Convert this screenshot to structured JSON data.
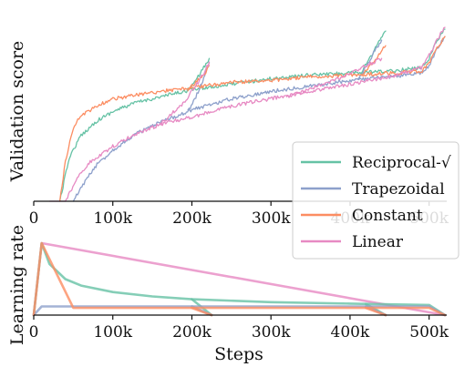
{
  "colors": {
    "reciprocal_sqrt": "#66c2a5",
    "trapezoidal": "#8da0cb",
    "constant": "#fc8d62",
    "linear": "#e78ac3"
  },
  "chart_data": [
    {
      "type": "line",
      "ylabel": "Validation score",
      "xlabel": "",
      "xlim": [
        0,
        520000
      ],
      "ylim": [
        0,
        1
      ],
      "x_ticks": [
        0,
        100000,
        200000,
        300000,
        400000,
        500000
      ],
      "x_tick_labels": [
        "0",
        "100k",
        "200k",
        "300k",
        "400k",
        "500k"
      ],
      "grid": false,
      "legend_position": "right",
      "noisy_lines": true,
      "series": [
        {
          "name": "Reciprocal-√",
          "color": "#66c2a5",
          "x": [
            33000,
            45000,
            60000,
            80000,
            100000,
            130000,
            160000,
            200000,
            250000,
            300000,
            350000,
            400000,
            450000,
            490000,
            500000,
            510000,
            520000
          ],
          "y": [
            0.0,
            0.24,
            0.36,
            0.44,
            0.49,
            0.54,
            0.57,
            0.61,
            0.64,
            0.67,
            0.69,
            0.7,
            0.71,
            0.73,
            0.78,
            0.88,
            0.94
          ]
        },
        {
          "name": "Reciprocal-√",
          "color": "#66c2a5",
          "x": [
            195000,
            205000,
            215000,
            222000
          ],
          "y": [
            0.61,
            0.66,
            0.73,
            0.78
          ]
        },
        {
          "name": "Reciprocal-√",
          "color": "#66c2a5",
          "x": [
            415000,
            425000,
            435000,
            445000
          ],
          "y": [
            0.71,
            0.78,
            0.86,
            0.93
          ]
        },
        {
          "name": "Trapezoidal",
          "color": "#8da0cb",
          "x": [
            50000,
            65000,
            80000,
            100000,
            130000,
            160000,
            200000,
            250000,
            300000,
            350000,
            400000,
            450000,
            490000,
            500000,
            510000,
            520000
          ],
          "y": [
            0.0,
            0.11,
            0.2,
            0.28,
            0.37,
            0.43,
            0.5,
            0.56,
            0.6,
            0.63,
            0.66,
            0.68,
            0.7,
            0.74,
            0.83,
            0.9
          ]
        },
        {
          "name": "Trapezoidal",
          "color": "#8da0cb",
          "x": [
            195000,
            205000,
            215000,
            222000
          ],
          "y": [
            0.49,
            0.57,
            0.67,
            0.76
          ]
        },
        {
          "name": "Trapezoidal",
          "color": "#8da0cb",
          "x": [
            410000,
            420000,
            430000,
            440000
          ],
          "y": [
            0.67,
            0.73,
            0.81,
            0.88
          ]
        },
        {
          "name": "Constant",
          "color": "#fc8d62",
          "x": [
            33000,
            40000,
            50000,
            60000,
            80000,
            100000,
            130000,
            160000,
            200000,
            250000,
            300000,
            350000,
            400000,
            450000,
            490000,
            500000,
            510000,
            520000
          ],
          "y": [
            0.0,
            0.22,
            0.4,
            0.47,
            0.52,
            0.56,
            0.58,
            0.6,
            0.62,
            0.65,
            0.66,
            0.68,
            0.69,
            0.7,
            0.71,
            0.75,
            0.84,
            0.9
          ]
        },
        {
          "name": "Constant",
          "color": "#fc8d62",
          "x": [
            195000,
            205000,
            215000,
            222000
          ],
          "y": [
            0.61,
            0.65,
            0.69,
            0.74
          ]
        },
        {
          "name": "Constant",
          "color": "#fc8d62",
          "x": [
            415000,
            425000,
            435000,
            445000
          ],
          "y": [
            0.69,
            0.74,
            0.79,
            0.85
          ]
        },
        {
          "name": "Linear",
          "color": "#e78ac3",
          "x": [
            40000,
            55000,
            70000,
            100000,
            130000,
            160000,
            200000,
            250000,
            300000,
            350000,
            400000,
            450000,
            490000,
            500000,
            510000,
            520000
          ],
          "y": [
            0.0,
            0.13,
            0.21,
            0.3,
            0.37,
            0.42,
            0.46,
            0.52,
            0.56,
            0.6,
            0.64,
            0.68,
            0.73,
            0.8,
            0.88,
            0.95
          ]
        },
        {
          "name": "Linear",
          "color": "#e78ac3",
          "x": [
            160000,
            175000,
            190000,
            205000,
            215000,
            222000
          ],
          "y": [
            0.42,
            0.48,
            0.54,
            0.63,
            0.7,
            0.76
          ]
        },
        {
          "name": "Linear",
          "color": "#e78ac3",
          "x": [
            320000,
            340000,
            360000,
            380000,
            400000,
            420000,
            440000
          ],
          "y": [
            0.57,
            0.6,
            0.63,
            0.66,
            0.7,
            0.74,
            0.78
          ]
        },
        {
          "name": "Linear",
          "color": "#e78ac3",
          "x": [
            20000,
            30000,
            40000
          ],
          "y": [
            0.0,
            0.0,
            0.0
          ]
        }
      ],
      "legend": [
        {
          "name": "Reciprocal-√",
          "color": "#66c2a5"
        },
        {
          "name": "Trapezoidal",
          "color": "#8da0cb"
        },
        {
          "name": "Constant",
          "color": "#fc8d62"
        },
        {
          "name": "Linear",
          "color": "#e78ac3"
        }
      ]
    },
    {
      "type": "line",
      "ylabel": "Learning rate",
      "xlabel": "Steps",
      "xlim": [
        0,
        520000
      ],
      "ylim": [
        0,
        1
      ],
      "x_ticks": [
        0,
        100000,
        200000,
        300000,
        400000,
        500000
      ],
      "x_tick_labels": [
        "0",
        "100k",
        "200k",
        "300k",
        "400k",
        "500k"
      ],
      "grid": false,
      "series": [
        {
          "name": "Linear",
          "color": "#e78ac3",
          "x": [
            0,
            10000,
            520000
          ],
          "y": [
            0.0,
            1.0,
            0.0
          ]
        },
        {
          "name": "Reciprocal-√",
          "color": "#66c2a5",
          "x": [
            0,
            10000,
            20000,
            40000,
            60000,
            100000,
            150000,
            200000,
            300000,
            400000,
            500000,
            520000
          ],
          "y": [
            0.0,
            1.0,
            0.71,
            0.5,
            0.41,
            0.32,
            0.26,
            0.22,
            0.18,
            0.16,
            0.14,
            0.0
          ]
        },
        {
          "name": "Reciprocal-√",
          "color": "#66c2a5",
          "x": [
            200000,
            225000
          ],
          "y": [
            0.22,
            0.0
          ]
        },
        {
          "name": "Reciprocal-√",
          "color": "#66c2a5",
          "x": [
            420000,
            445000
          ],
          "y": [
            0.155,
            0.0
          ]
        },
        {
          "name": "Trapezoidal",
          "color": "#8da0cb",
          "x": [
            0,
            10000,
            500000,
            520000
          ],
          "y": [
            0.0,
            0.12,
            0.12,
            0.0
          ]
        },
        {
          "name": "Trapezoidal",
          "color": "#8da0cb",
          "x": [
            200000,
            225000
          ],
          "y": [
            0.12,
            0.0
          ]
        },
        {
          "name": "Trapezoidal",
          "color": "#8da0cb",
          "x": [
            420000,
            445000
          ],
          "y": [
            0.12,
            0.0
          ]
        },
        {
          "name": "Constant",
          "color": "#fc8d62",
          "x": [
            0,
            10000,
            50000,
            500000,
            520000
          ],
          "y": [
            0.0,
            1.0,
            0.1,
            0.1,
            0.0
          ]
        },
        {
          "name": "Constant",
          "color": "#fc8d62",
          "x": [
            200000,
            225000
          ],
          "y": [
            0.1,
            0.0
          ]
        },
        {
          "name": "Constant",
          "color": "#fc8d62",
          "x": [
            420000,
            445000
          ],
          "y": [
            0.1,
            0.0
          ]
        }
      ]
    }
  ]
}
